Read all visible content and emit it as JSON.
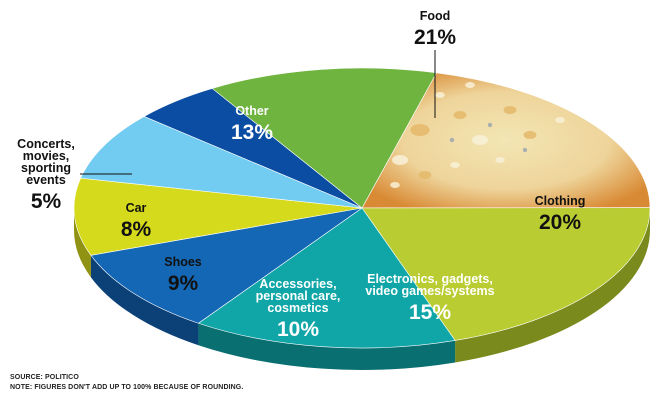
{
  "chart_data": {
    "type": "pie",
    "title": "",
    "start_label": "Food",
    "slices": [
      {
        "key": "food",
        "label": "Food",
        "value": 21,
        "display": "21%",
        "color": "#e8a23a",
        "side_color": "#a8631e"
      },
      {
        "key": "clothing",
        "label": "Clothing",
        "value": 20,
        "display": "20%",
        "color": "#b9cc32",
        "side_color": "#7b8a1c"
      },
      {
        "key": "electronics",
        "label": "Electronics, gadgets,\nvideo games/systems",
        "value": 15,
        "display": "15%",
        "color": "#10a6a8",
        "side_color": "#0a6f71"
      },
      {
        "key": "accessories",
        "label": "Accessories,\npersonal care,\ncosmetics",
        "value": 10,
        "display": "10%",
        "color": "#1467b4",
        "side_color": "#0c4178"
      },
      {
        "key": "shoes",
        "label": "Shoes",
        "value": 9,
        "display": "9%",
        "color": "#d6da1c",
        "side_color": "#8f9212"
      },
      {
        "key": "car",
        "label": "Car",
        "value": 8,
        "display": "8%",
        "color": "#72cbf0",
        "side_color": "#4a8bab"
      },
      {
        "key": "concerts",
        "label": "Concerts,\nmovies,\nsporting\nevents",
        "value": 5,
        "display": "5%",
        "color": "#0b4da2",
        "side_color": "#062f66"
      },
      {
        "key": "other",
        "label": "Other",
        "value": 13,
        "display": "13%",
        "color": "#6fb43f",
        "side_color": "#497a29"
      }
    ]
  },
  "source": "SOURCE: POLITICO",
  "note": "NOTE: FIGURES DON'T ADD UP TO 100% BECAUSE OF ROUNDING.",
  "colors": {
    "label_light": "#ffffff",
    "label_dark": "#111111"
  }
}
